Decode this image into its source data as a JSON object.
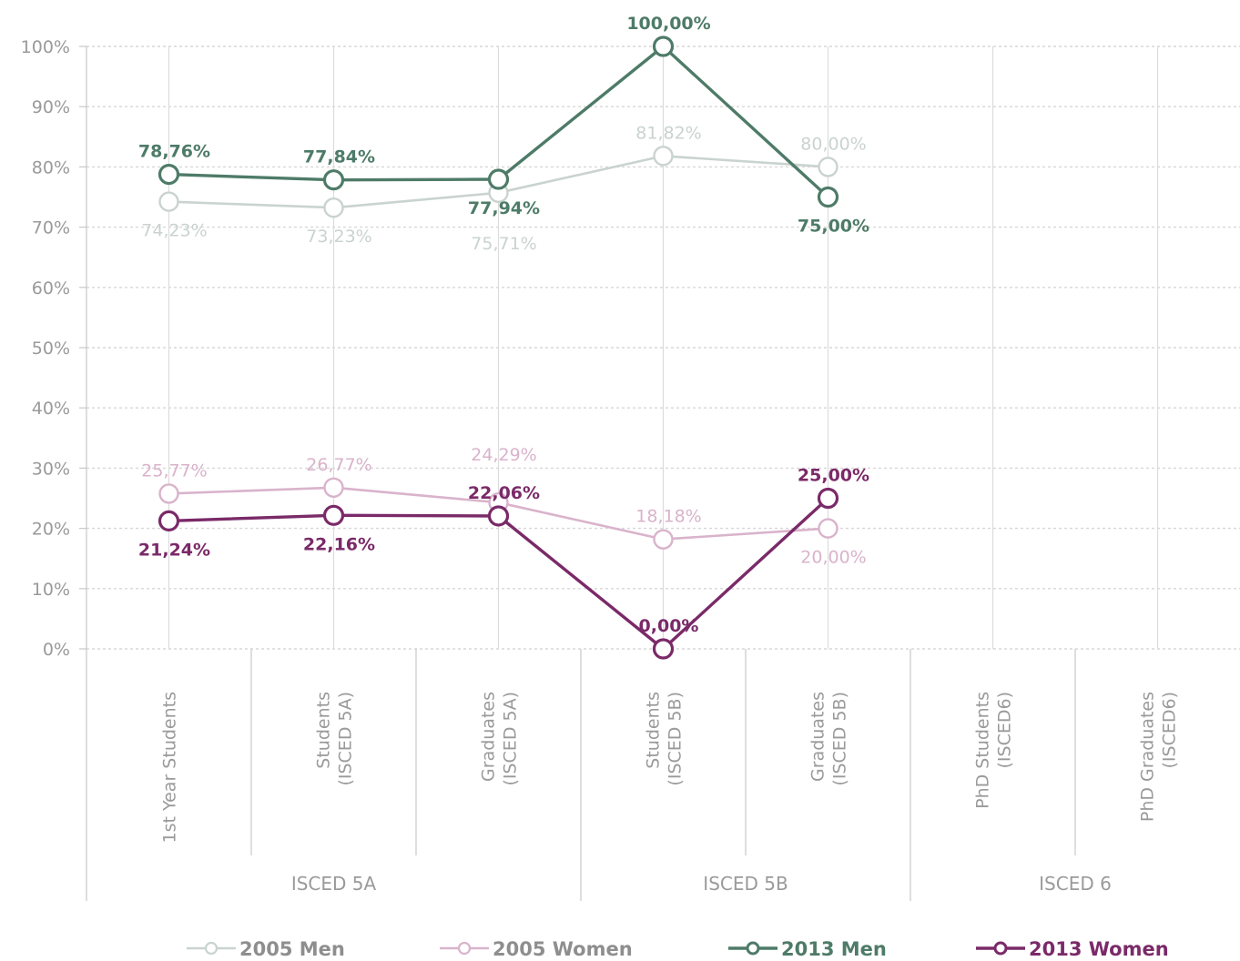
{
  "chart_data": {
    "type": "line",
    "categories": [
      [
        "1st Year  Students"
      ],
      [
        "Students",
        "(ISCED 5A)"
      ],
      [
        "Graduates",
        "(ISCED 5A)"
      ],
      [
        "Students",
        "(ISCED 5B)"
      ],
      [
        "Graduates",
        "(ISCED 5B)"
      ],
      [
        "PhD Students",
        "(ISCED6)"
      ],
      [
        "PhD Graduates",
        "(ISCED6)"
      ]
    ],
    "groups": [
      {
        "label": "ISCED 5A",
        "span": [
          0,
          2
        ]
      },
      {
        "label": "ISCED 5B",
        "span": [
          3,
          4
        ]
      },
      {
        "label": "ISCED 6",
        "span": [
          5,
          6
        ]
      }
    ],
    "ylim": [
      0,
      100
    ],
    "yticks": [
      "0%",
      "10%",
      "20%",
      "30%",
      "40%",
      "50%",
      "60%",
      "70%",
      "80%",
      "90%",
      "100%"
    ],
    "grid": true,
    "legend_position": "bottom",
    "series": [
      {
        "name": "2005 Men",
        "color": "#c9d3cf",
        "values": [
          74.23,
          73.23,
          75.71,
          81.82,
          80.0,
          null,
          null
        ],
        "labels": [
          "74,23%",
          "73,23%",
          "75,71%",
          "81,82%",
          "80,00%",
          null,
          null
        ],
        "label_pos": [
          "below",
          "below",
          "below2",
          "above",
          "above",
          null,
          null
        ],
        "bold": false
      },
      {
        "name": "2005 Women",
        "color": "#d9b3cb",
        "values": [
          25.77,
          26.77,
          24.29,
          18.18,
          20.0,
          null,
          null
        ],
        "labels": [
          "25,77%",
          "26,77%",
          "24,29%",
          "18,18%",
          "20,00%",
          null,
          null
        ],
        "label_pos": [
          "above",
          "above",
          "above2",
          "above",
          "below",
          null,
          null
        ],
        "bold": false
      },
      {
        "name": "2013 Men",
        "color": "#4e7b68",
        "values": [
          78.76,
          77.84,
          77.94,
          100.0,
          75.0,
          null,
          null
        ],
        "labels": [
          "78,76%",
          "77,84%",
          "77,94%",
          "100,00%",
          "75,00%",
          null,
          null
        ],
        "label_pos": [
          "above",
          "above",
          "below",
          "above",
          "below",
          null,
          null
        ],
        "bold": true
      },
      {
        "name": "2013 Women",
        "color": "#7a2a68",
        "values": [
          21.24,
          22.16,
          22.06,
          0.0,
          25.0,
          null,
          null
        ],
        "labels": [
          "21,24%",
          "22,16%",
          "22,06%",
          "0,00%",
          "25,00%",
          null,
          null
        ],
        "label_pos": [
          "below",
          "below",
          "above",
          "above",
          "above",
          null,
          null
        ],
        "bold": true
      }
    ]
  }
}
